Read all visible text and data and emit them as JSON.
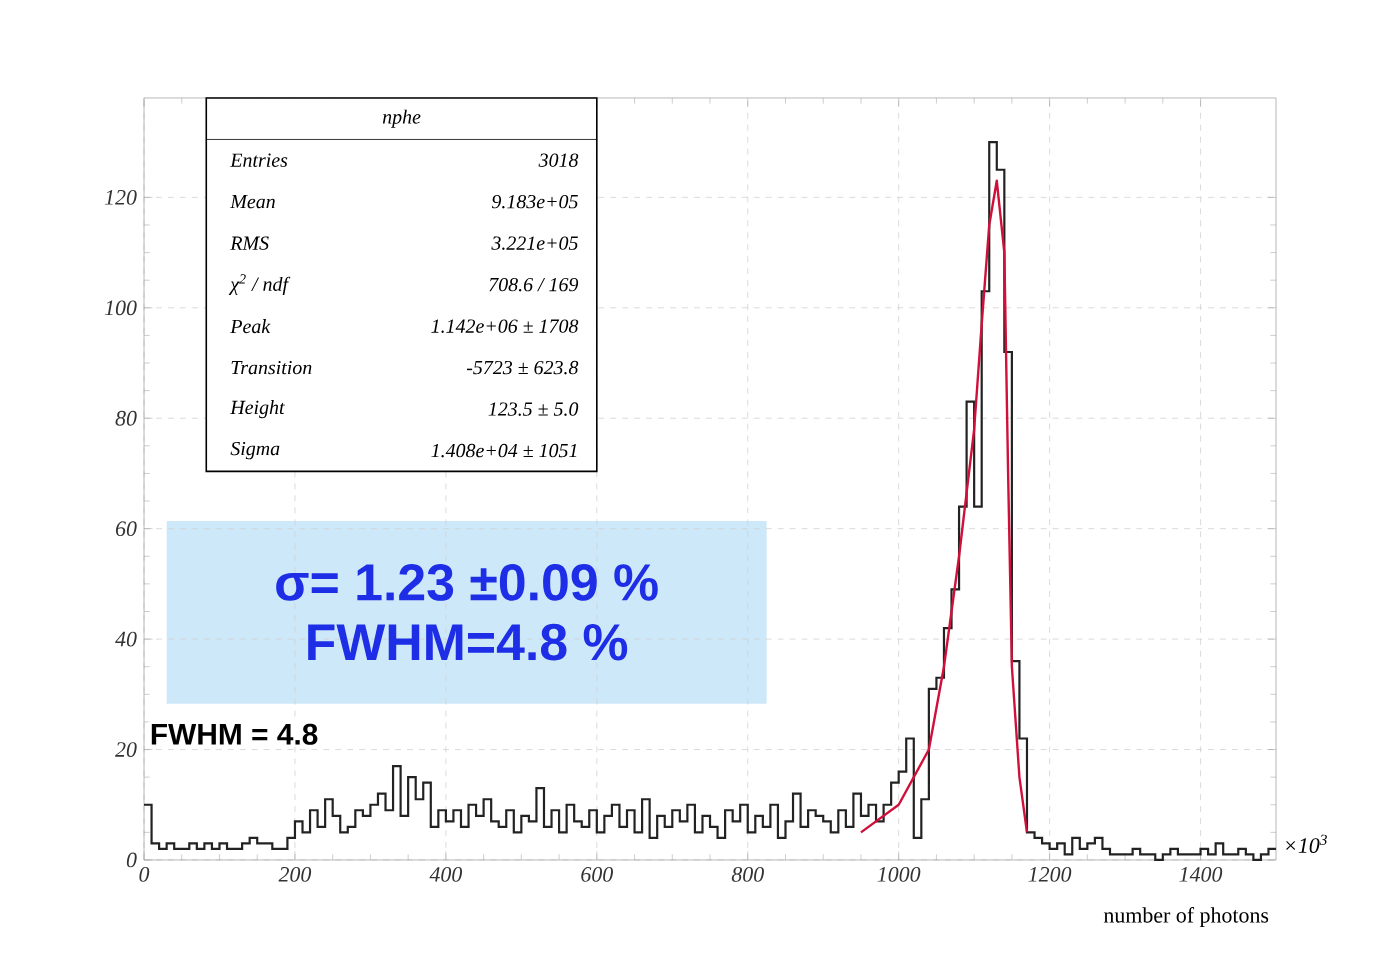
{
  "chart_data": {
    "type": "histogram",
    "xlabel": "number of photons",
    "bins": [
      0,
      10,
      20,
      30,
      40,
      50,
      60,
      70,
      80,
      90,
      100,
      110,
      120,
      130,
      140,
      150,
      160,
      170,
      180,
      190,
      200,
      210,
      220,
      230,
      240,
      250,
      260,
      270,
      280,
      290,
      300,
      310,
      320,
      330,
      340,
      350,
      360,
      370,
      380,
      390,
      400,
      410,
      420,
      430,
      440,
      450,
      460,
      470,
      480,
      490,
      500,
      510,
      520,
      530,
      540,
      550,
      560,
      570,
      580,
      590,
      600,
      610,
      620,
      630,
      640,
      650,
      660,
      670,
      680,
      690,
      700,
      710,
      720,
      730,
      740,
      750,
      760,
      770,
      780,
      790,
      800,
      810,
      820,
      830,
      840,
      850,
      860,
      870,
      880,
      890,
      900,
      910,
      920,
      930,
      940,
      950,
      960,
      970,
      980,
      990,
      1000,
      1010,
      1020,
      1030,
      1040,
      1050,
      1060,
      1070,
      1080,
      1090,
      1100,
      1110,
      1120,
      1130,
      1140,
      1150,
      1160,
      1170,
      1180,
      1190,
      1200,
      1210,
      1220,
      1230,
      1240,
      1250,
      1260,
      1270,
      1280,
      1290,
      1300,
      1310,
      1320,
      1330,
      1340,
      1350,
      1360,
      1370,
      1380,
      1390,
      1400,
      1410,
      1420,
      1430,
      1440,
      1450,
      1460,
      1470,
      1480,
      1490,
      1500
    ],
    "values": [
      10,
      3,
      2,
      3,
      2,
      2,
      3,
      2,
      3,
      2,
      3,
      2,
      2,
      3,
      4,
      3,
      3,
      2,
      2,
      4,
      7,
      5,
      9,
      6,
      11,
      8,
      5,
      6,
      9,
      8,
      10,
      12,
      9,
      17,
      8,
      15,
      11,
      14,
      6,
      9,
      7,
      9,
      6,
      10,
      8,
      11,
      7,
      6,
      9,
      5,
      8,
      7,
      13,
      6,
      9,
      5,
      10,
      7,
      6,
      9,
      5,
      8,
      10,
      6,
      9,
      5,
      11,
      4,
      8,
      6,
      9,
      7,
      10,
      5,
      8,
      6,
      4,
      9,
      7,
      10,
      5,
      8,
      6,
      10,
      4,
      7,
      12,
      6,
      9,
      8,
      7,
      5,
      9,
      6,
      12,
      8,
      10,
      7,
      10,
      14,
      16,
      22,
      4,
      11,
      31,
      33,
      42,
      49,
      64,
      83,
      64,
      103,
      130,
      125,
      92,
      36,
      22,
      5,
      4,
      3,
      2,
      3,
      1,
      4,
      2,
      3,
      4,
      2,
      1,
      1,
      1,
      2,
      1,
      1,
      0,
      1,
      2,
      1,
      1,
      1,
      2,
      1,
      3,
      1,
      1,
      2,
      1,
      0,
      1,
      2
    ],
    "color": "#222222",
    "series": [
      {
        "type": "line",
        "color": "#d0103a",
        "x": [
          950,
          1000,
          1040,
          1060,
          1080,
          1100,
          1110,
          1120,
          1130,
          1140,
          1145,
          1150,
          1160,
          1170
        ],
        "values": [
          5,
          10,
          20,
          35,
          55,
          78,
          97,
          115,
          123,
          110,
          70,
          35,
          15,
          5
        ]
      }
    ],
    "xlim": [
      0,
      1500
    ],
    "ylim": [
      0,
      138
    ],
    "xticks": [
      0,
      200,
      400,
      600,
      800,
      1000,
      1200,
      1400
    ],
    "yticks": [
      0,
      20,
      40,
      60,
      80,
      100,
      120
    ],
    "grid": true,
    "annotations": [
      "nphe",
      "Entries",
      "3018",
      "Mean",
      "9.183e+05",
      "RMS",
      "3.221e+05",
      "χ$^{2}$ / ndf",
      "708.6 / 169",
      "Peak",
      "1.142e+06 ± 1708",
      "Transition",
      "-5723 ± 623.8",
      "Height",
      "123.5 ± 5.0",
      "Sigma",
      "1.408e+04 ± 1051",
      "σ= 1.23  ±0.09 %",
      "FWHM=4.8 %",
      "FWHM = 4.8",
      "×10$^{3}$"
    ]
  }
}
